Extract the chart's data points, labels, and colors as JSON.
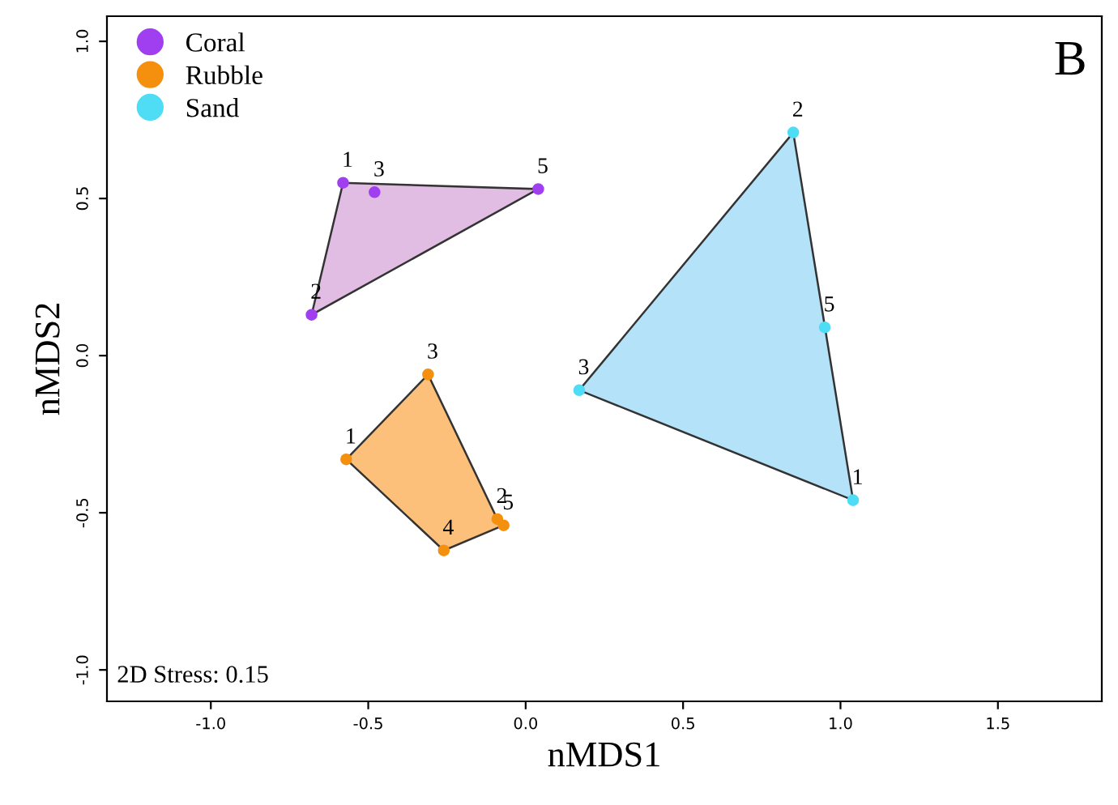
{
  "chart_data": {
    "type": "scatter",
    "xlabel": "nMDS1",
    "ylabel": "nMDS2",
    "xlim": [
      -1.33,
      1.83
    ],
    "ylim": [
      -1.1,
      1.08
    ],
    "xticks": [
      {
        "value": -1.0,
        "label": "-1.0"
      },
      {
        "value": -0.5,
        "label": "-0.5"
      },
      {
        "value": 0.0,
        "label": "0.0"
      },
      {
        "value": 0.5,
        "label": "0.5"
      },
      {
        "value": 1.0,
        "label": "1.0"
      },
      {
        "value": 1.5,
        "label": "1.5"
      }
    ],
    "yticks": [
      {
        "value": -1.0,
        "label": "-1.0"
      },
      {
        "value": -0.5,
        "label": "-0.5"
      },
      {
        "value": 0.0,
        "label": "0.0"
      },
      {
        "value": 0.5,
        "label": "0.5"
      },
      {
        "value": 1.0,
        "label": "1.0"
      }
    ],
    "grid": false,
    "legend": "top left",
    "marker": "circle",
    "series": [
      {
        "name": "Coral",
        "color": "#a03ff0",
        "x": [
          -0.58,
          -0.68,
          -0.48,
          0.04
        ],
        "values": [
          0.55,
          0.13,
          0.52,
          0.53
        ]
      },
      {
        "name": "Rubble",
        "color": "#f5900f",
        "x": [
          -0.57,
          -0.09,
          -0.31,
          -0.26,
          -0.07
        ],
        "values": [
          -0.33,
          -0.52,
          -0.06,
          -0.62,
          -0.54
        ]
      },
      {
        "name": "Sand",
        "color": "#4fdcf5",
        "x": [
          1.04,
          0.85,
          0.17,
          0.95
        ],
        "values": [
          -0.46,
          0.71,
          -0.11,
          0.09
        ]
      },
      {
        "type": "area",
        "marker": "none",
        "color": "#e2bde3",
        "x": [
          -0.58,
          -0.68,
          0.04,
          -0.58
        ],
        "values": [
          0.55,
          0.13,
          0.53,
          0.55
        ]
      },
      {
        "type": "area",
        "marker": "none",
        "color": "#fcc07a",
        "x": [
          -0.57,
          -0.26,
          -0.07,
          -0.09,
          -0.31,
          -0.57
        ],
        "values": [
          -0.33,
          -0.62,
          -0.54,
          -0.52,
          -0.06,
          -0.33
        ]
      },
      {
        "type": "area",
        "marker": "none",
        "color": "#b4e2f8",
        "x": [
          1.04,
          0.85,
          0.17,
          1.04
        ],
        "values": [
          -0.46,
          0.71,
          -0.11,
          -0.46
        ]
      }
    ],
    "annotations": [
      {
        "text": "1",
        "x": -0.58,
        "y": 0.55
      },
      {
        "text": "2",
        "x": -0.68,
        "y": 0.13
      },
      {
        "text": "3",
        "x": -0.48,
        "y": 0.52
      },
      {
        "text": "5",
        "x": 0.04,
        "y": 0.53
      },
      {
        "text": "1",
        "x": -0.57,
        "y": -0.33
      },
      {
        "text": "2",
        "x": -0.09,
        "y": -0.52
      },
      {
        "text": "3",
        "x": -0.31,
        "y": -0.06
      },
      {
        "text": "4",
        "x": -0.26,
        "y": -0.62
      },
      {
        "text": "5",
        "x": -0.07,
        "y": -0.54
      },
      {
        "text": "1",
        "x": 1.04,
        "y": -0.46
      },
      {
        "text": "2",
        "x": 0.85,
        "y": 0.71
      },
      {
        "text": "3",
        "x": 0.17,
        "y": -0.11
      },
      {
        "text": "5",
        "x": 0.95,
        "y": 0.09
      },
      "B",
      "2D Stress: 0.15"
    ]
  }
}
